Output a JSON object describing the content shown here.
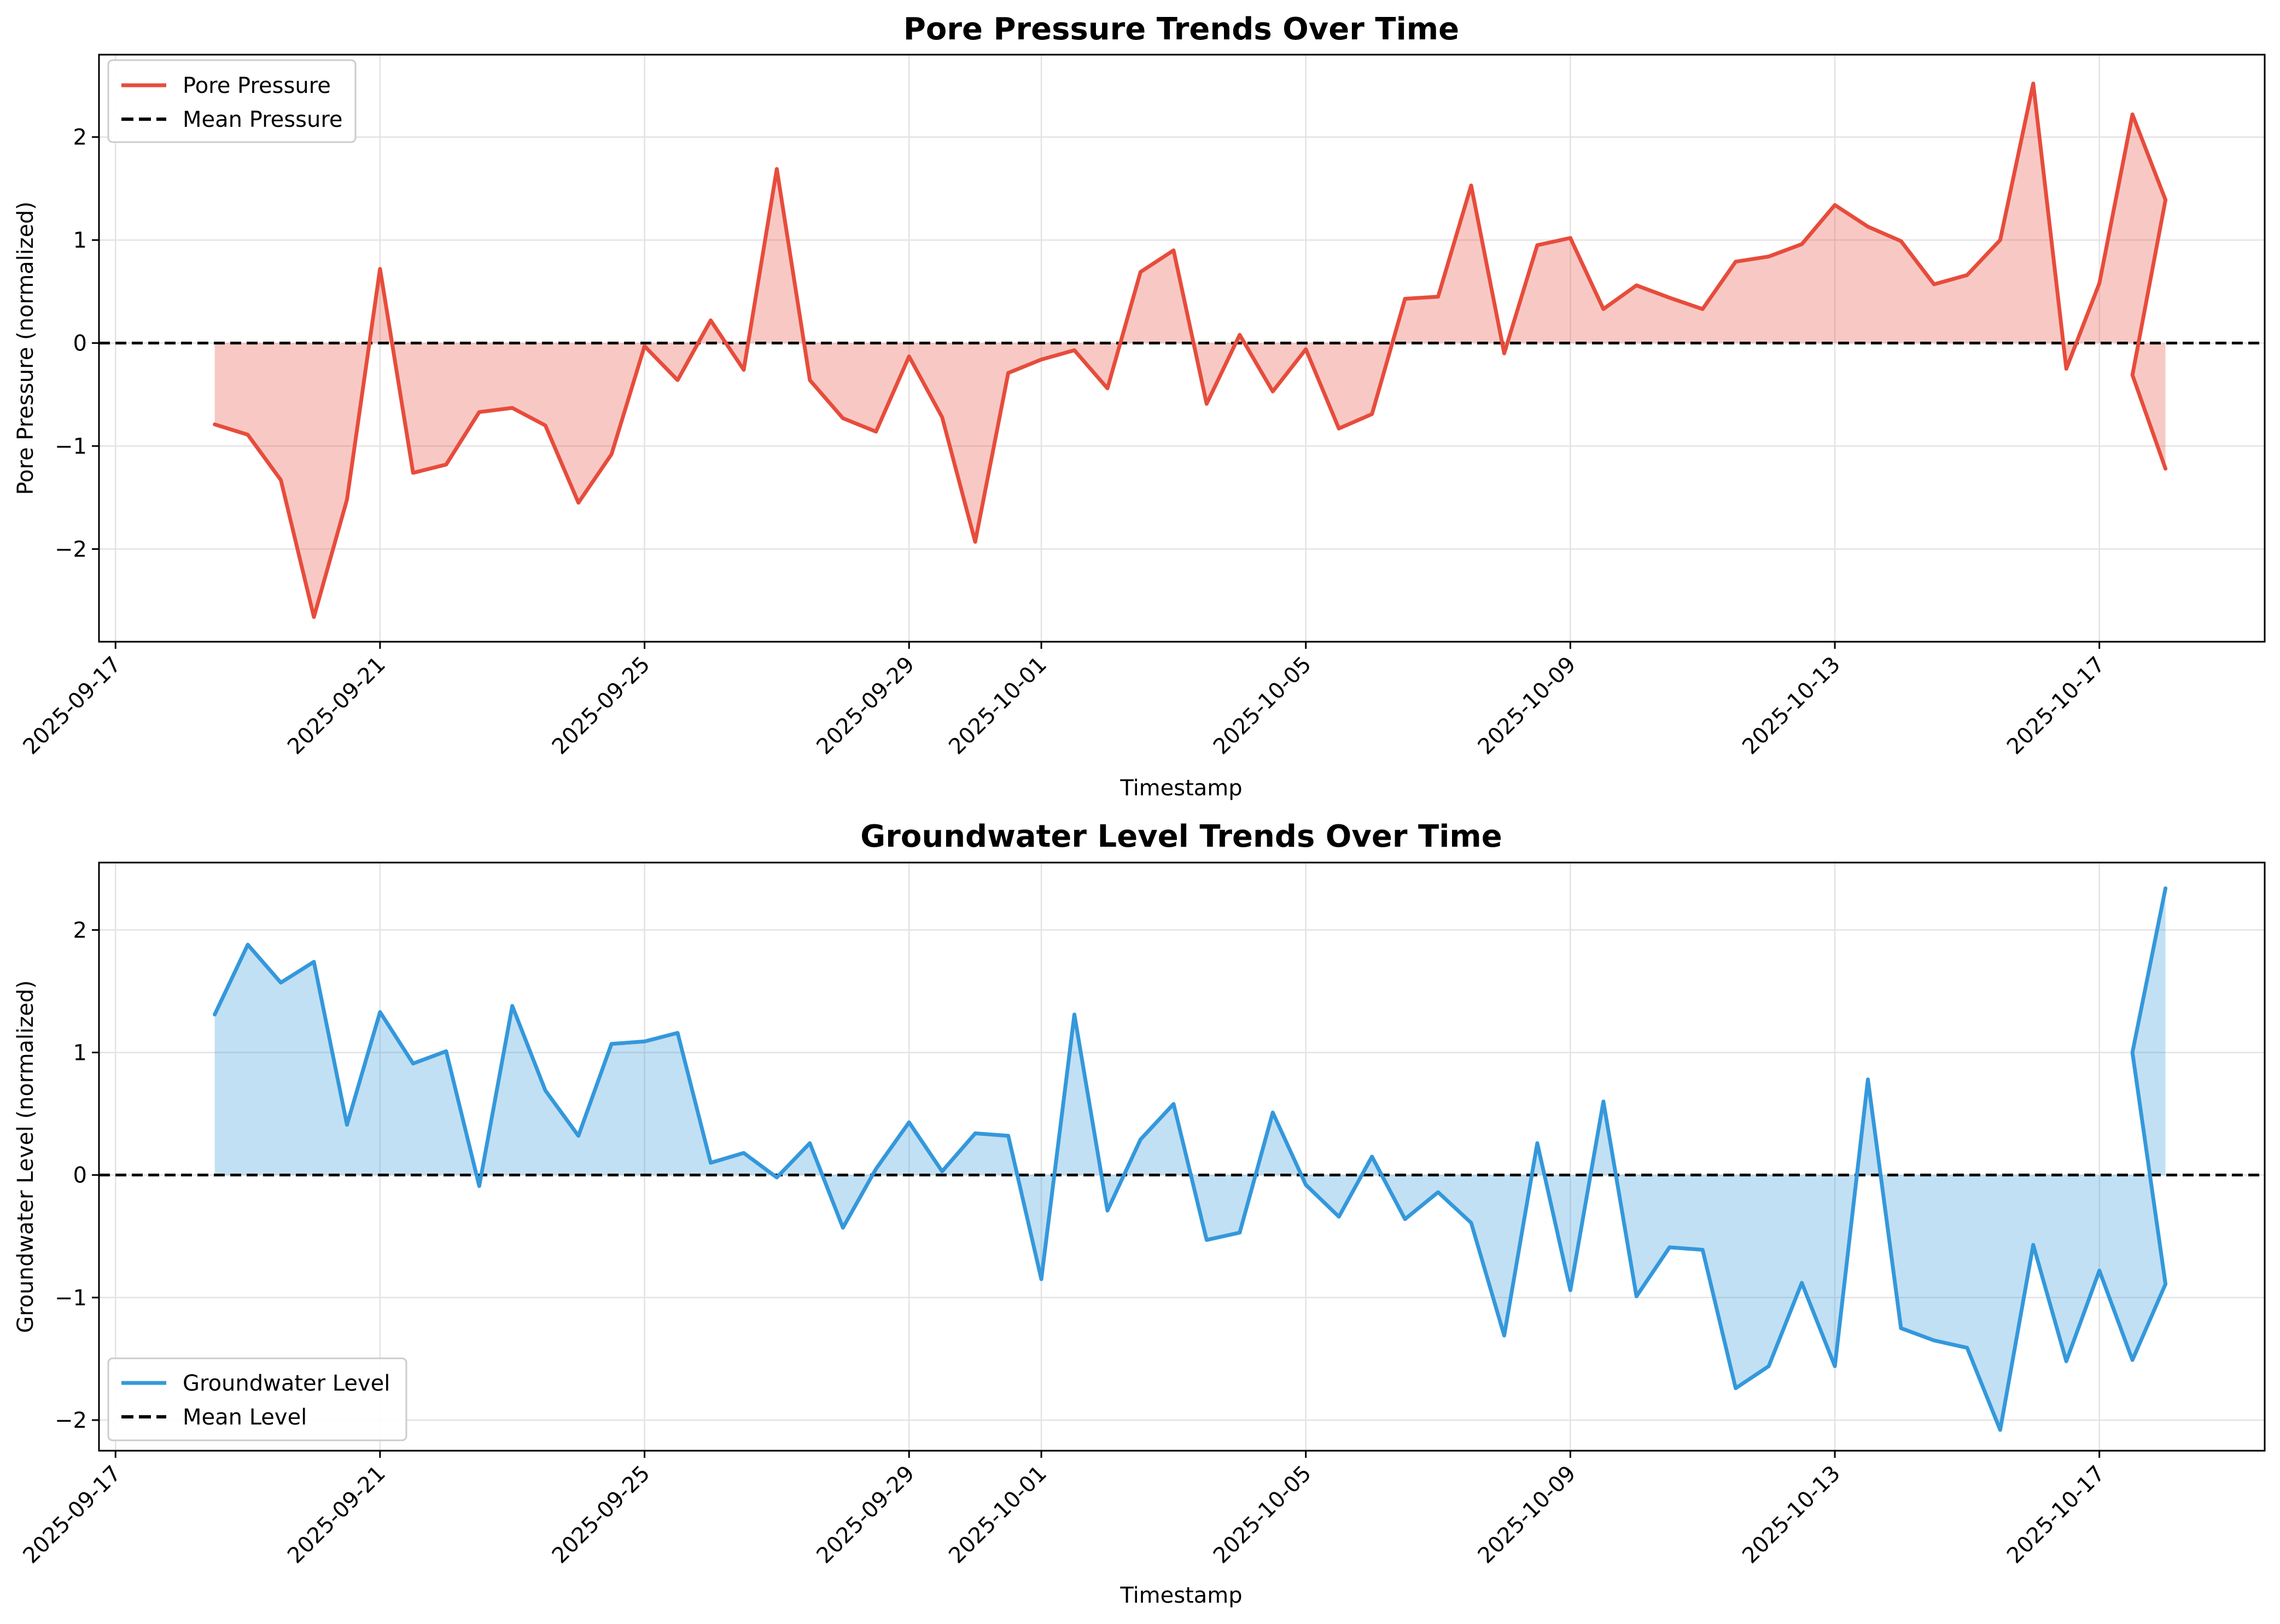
{
  "chart_data": [
    {
      "type": "line",
      "title": "Pore Pressure Trends Over Time",
      "xlabel": "Timestamp",
      "ylabel": "Pore Pressure (normalized)",
      "xlim": [
        "2025-09-16T18:00",
        "2025-10-19T12:00"
      ],
      "ylim": [
        -2.9,
        2.8
      ],
      "x_ticks": [
        "2025-09-17",
        "2025-09-21",
        "2025-09-25",
        "2025-09-29",
        "2025-10-01",
        "2025-10-05",
        "2025-10-09",
        "2025-10-13",
        "2025-10-17"
      ],
      "y_ticks": [
        -2,
        -1,
        0,
        1,
        2
      ],
      "grid": true,
      "legend_position": "upper-left",
      "fill_between_mean": true,
      "series": [
        {
          "name": "Pore Pressure",
          "color": "#e74c3c",
          "x": [
            "2025-09-18T12:00",
            "2025-09-19T00:00",
            "2025-09-19T12:00",
            "2025-09-20T00:00",
            "2025-09-20T12:00",
            "2025-09-21T00:00",
            "2025-09-21T12:00",
            "2025-09-22T00:00",
            "2025-09-22T12:00",
            "2025-09-23T00:00",
            "2025-09-23T12:00",
            "2025-09-24T00:00",
            "2025-09-24T12:00",
            "2025-09-25T00:00",
            "2025-09-25T12:00",
            "2025-09-26T00:00",
            "2025-09-26T12:00",
            "2025-09-27T00:00",
            "2025-09-27T12:00",
            "2025-09-28T00:00",
            "2025-09-28T12:00",
            "2025-09-29T00:00",
            "2025-09-29T12:00",
            "2025-09-30T00:00",
            "2025-09-30T12:00",
            "2025-10-01T00:00",
            "2025-10-01T12:00",
            "2025-10-02T00:00",
            "2025-10-02T12:00",
            "2025-10-03T00:00",
            "2025-10-03T12:00",
            "2025-10-04T00:00",
            "2025-10-04T12:00",
            "2025-10-05T00:00",
            "2025-10-05T12:00",
            "2025-10-06T00:00",
            "2025-10-06T12:00",
            "2025-10-07T00:00",
            "2025-10-07T12:00",
            "2025-10-08T00:00",
            "2025-10-08T12:00",
            "2025-10-09T00:00",
            "2025-10-09T12:00",
            "2025-10-10T00:00",
            "2025-10-10T12:00",
            "2025-10-11T00:00",
            "2025-10-11T12:00",
            "2025-10-12T00:00",
            "2025-10-12T12:00",
            "2025-10-13T00:00",
            "2025-10-13T12:00",
            "2025-10-14T00:00",
            "2025-10-14T12:00",
            "2025-10-15T00:00",
            "2025-10-15T12:00",
            "2025-10-16T00:00",
            "2025-10-16T12:00",
            "2025-10-17T00:00",
            "2025-10-17T12:00",
            "2025-10-18T00:00",
            "2025-10-17T12:00",
            "2025-10-18T00:00"
          ],
          "y": [
            -0.79,
            -0.89,
            -1.33,
            -2.66,
            -1.52,
            0.72,
            -1.26,
            -1.18,
            -0.67,
            -0.63,
            -0.8,
            -1.55,
            -1.08,
            -0.03,
            -0.36,
            0.22,
            -0.26,
            1.69,
            -0.36,
            -0.73,
            -0.86,
            -0.13,
            -0.72,
            -1.93,
            -0.29,
            -0.16,
            -0.07,
            -0.44,
            0.69,
            0.9,
            -0.59,
            0.08,
            -0.47,
            -0.06,
            -0.83,
            -0.69,
            0.43,
            0.45,
            1.53,
            -0.1,
            0.95,
            1.02,
            0.33,
            0.56,
            0.44,
            0.33,
            0.79,
            0.84,
            0.96,
            1.34,
            1.13,
            0.99,
            0.57,
            0.66,
            1.0,
            2.52,
            -0.25,
            0.58,
            2.22,
            1.39,
            -0.31,
            -1.22
          ]
        },
        {
          "name": "Mean Pressure",
          "color": "#000000",
          "style": "dashed",
          "y": 0
        }
      ]
    },
    {
      "type": "line",
      "title": "Groundwater Level Trends Over Time",
      "xlabel": "Timestamp",
      "ylabel": "Groundwater Level (normalized)",
      "xlim": [
        "2025-09-16T18:00",
        "2025-10-19T12:00"
      ],
      "ylim": [
        -2.25,
        2.55
      ],
      "x_ticks": [
        "2025-09-17",
        "2025-09-21",
        "2025-09-25",
        "2025-09-29",
        "2025-10-01",
        "2025-10-05",
        "2025-10-09",
        "2025-10-13",
        "2025-10-17"
      ],
      "y_ticks": [
        -2,
        -1,
        0,
        1,
        2
      ],
      "grid": true,
      "legend_position": "lower-left",
      "fill_between_mean": true,
      "series": [
        {
          "name": "Groundwater Level",
          "color": "#3498db",
          "x": [
            "2025-09-18T12:00",
            "2025-09-19T00:00",
            "2025-09-19T12:00",
            "2025-09-20T00:00",
            "2025-09-20T12:00",
            "2025-09-21T00:00",
            "2025-09-21T12:00",
            "2025-09-22T00:00",
            "2025-09-22T12:00",
            "2025-09-23T00:00",
            "2025-09-23T12:00",
            "2025-09-24T00:00",
            "2025-09-24T12:00",
            "2025-09-25T00:00",
            "2025-09-25T12:00",
            "2025-09-26T00:00",
            "2025-09-26T12:00",
            "2025-09-27T00:00",
            "2025-09-27T12:00",
            "2025-09-28T00:00",
            "2025-09-28T12:00",
            "2025-09-29T00:00",
            "2025-09-29T12:00",
            "2025-09-30T00:00",
            "2025-09-30T12:00",
            "2025-10-01T00:00",
            "2025-10-01T12:00",
            "2025-10-02T00:00",
            "2025-10-02T12:00",
            "2025-10-03T00:00",
            "2025-10-03T12:00",
            "2025-10-04T00:00",
            "2025-10-04T12:00",
            "2025-10-05T00:00",
            "2025-10-05T12:00",
            "2025-10-06T00:00",
            "2025-10-06T12:00",
            "2025-10-07T00:00",
            "2025-10-07T12:00",
            "2025-10-08T00:00",
            "2025-10-08T12:00",
            "2025-10-09T00:00",
            "2025-10-09T12:00",
            "2025-10-10T00:00",
            "2025-10-10T12:00",
            "2025-10-11T00:00",
            "2025-10-11T12:00",
            "2025-10-12T00:00",
            "2025-10-12T12:00",
            "2025-10-13T00:00",
            "2025-10-13T12:00",
            "2025-10-14T00:00",
            "2025-10-14T12:00",
            "2025-10-15T00:00",
            "2025-10-15T12:00",
            "2025-10-16T00:00",
            "2025-10-16T12:00",
            "2025-10-17T00:00",
            "2025-10-17T12:00",
            "2025-10-18T00:00",
            "2025-10-17T12:00",
            "2025-10-18T00:00"
          ],
          "y": [
            1.31,
            1.88,
            1.57,
            1.74,
            0.41,
            1.33,
            0.91,
            1.01,
            -0.09,
            1.38,
            0.69,
            0.32,
            1.07,
            1.09,
            1.16,
            0.1,
            0.18,
            -0.02,
            0.26,
            -0.43,
            0.05,
            0.43,
            0.03,
            0.34,
            0.32,
            -0.85,
            1.31,
            -0.29,
            0.29,
            0.58,
            -0.53,
            -0.47,
            0.51,
            -0.08,
            -0.34,
            0.15,
            -0.36,
            -0.14,
            -0.39,
            -1.31,
            0.26,
            -0.94,
            0.6,
            -0.99,
            -0.59,
            -0.61,
            -1.74,
            -1.56,
            -0.88,
            -1.56,
            0.78,
            -1.25,
            -1.35,
            -1.41,
            -2.08,
            -0.57,
            -1.52,
            -0.78,
            -1.51,
            -0.89,
            1.0,
            2.34
          ]
        },
        {
          "name": "Mean Level",
          "color": "#000000",
          "style": "dashed",
          "y": 0
        }
      ]
    }
  ]
}
